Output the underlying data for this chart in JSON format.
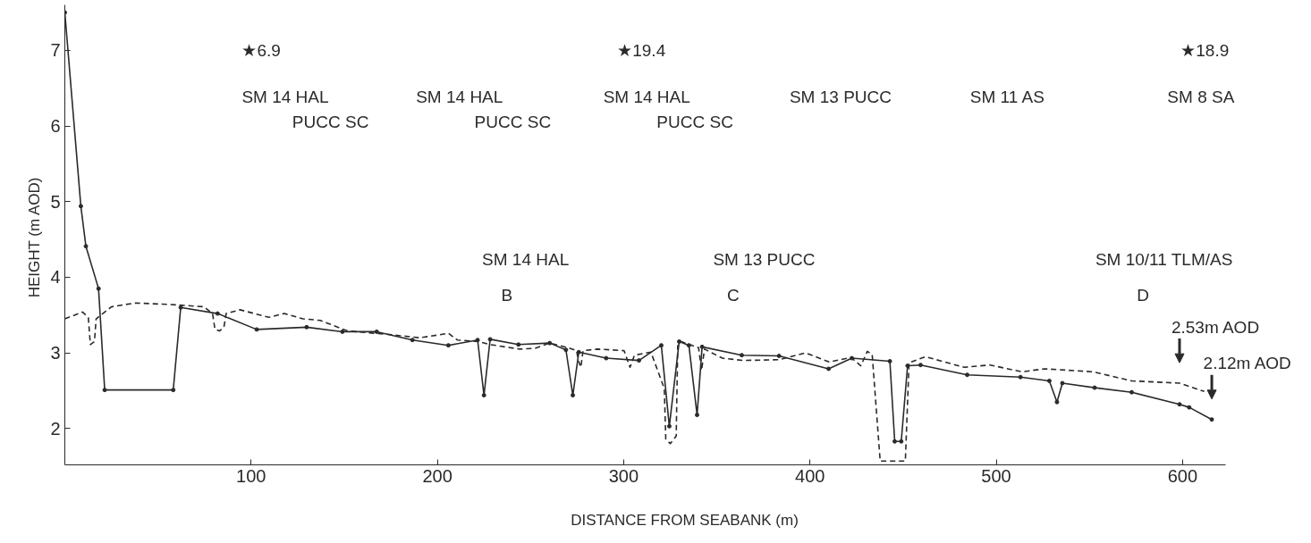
{
  "chart_data": {
    "type": "line",
    "xlabel": "DISTANCE FROM SEABANK (m)",
    "ylabel": "HEIGHT  (m AOD)",
    "xlim": [
      0,
      623
    ],
    "ylim": [
      1.52,
      7.6
    ],
    "xticks": [
      100,
      200,
      300,
      400,
      500,
      600
    ],
    "yticks": [
      2,
      3,
      4,
      5,
      6,
      7
    ],
    "grid": false,
    "series": [
      {
        "color": "#2a2a2a",
        "line_style": "solid",
        "marker": "circle",
        "x": [
          0,
          8.6,
          11.3,
          18.1,
          21.4,
          58.2,
          62.2,
          82,
          103,
          129.8,
          149,
          167.4,
          186.6,
          205.9,
          221.6,
          225,
          228.3,
          243.5,
          260.3,
          269,
          272.7,
          275.9,
          290.6,
          308.2,
          320.2,
          324.5,
          329.8,
          335,
          339.4,
          342.1,
          363.4,
          383.4,
          410,
          422.5,
          442.9,
          445.5,
          449,
          452.4,
          459.4,
          484.4,
          513,
          528.5,
          532.6,
          535.5,
          552.8,
          572.7,
          598.4,
          603.6,
          615.7
        ],
        "values": [
          7.5,
          4.94,
          4.41,
          3.85,
          2.51,
          2.51,
          3.6,
          3.52,
          3.31,
          3.34,
          3.28,
          3.28,
          3.17,
          3.1,
          3.17,
          2.44,
          3.18,
          3.11,
          3.13,
          3.04,
          2.44,
          3.01,
          2.93,
          2.9,
          3.1,
          2.03,
          3.15,
          3.1,
          2.18,
          3.08,
          2.97,
          2.96,
          2.79,
          2.93,
          2.89,
          1.83,
          1.83,
          2.83,
          2.84,
          2.71,
          2.68,
          2.63,
          2.35,
          2.6,
          2.54,
          2.48,
          2.32,
          2.28,
          2.12
        ]
      },
      {
        "color": "#2a2a2a",
        "line_style": "dashed",
        "marker": "none",
        "x": [
          0,
          9.5,
          12.6,
          13.7,
          15.9,
          16.8,
          25.1,
          37.9,
          56.3,
          74.7,
          79.3,
          80.6,
          83,
          85.4,
          86.6,
          94,
          109.6,
          117.8,
          127.9,
          137.1,
          151.8,
          175.5,
          190.4,
          201.4,
          205.9,
          210.7,
          221.9,
          228.3,
          244.3,
          252.3,
          260.3,
          269.9,
          274.7,
          275.8,
          277,
          278.2,
          285.9,
          300.2,
          303.4,
          305.8,
          314.6,
          321.8,
          322.6,
          325,
          328.2,
          329,
          330.6,
          340.2,
          341.8,
          343.4,
          353,
          364.2,
          383.4,
          397.7,
          410.3,
          422,
          427.3,
          430.8,
          433.4,
          437.7,
          451.2,
          453.2,
          461.9,
          482.7,
          496.6,
          513.9,
          526,
          552,
          572.7,
          598.4,
          611.7
        ],
        "values": [
          3.45,
          3.54,
          3.47,
          3.11,
          3.15,
          3.45,
          3.61,
          3.66,
          3.64,
          3.61,
          3.52,
          3.31,
          3.29,
          3.34,
          3.52,
          3.57,
          3.47,
          3.52,
          3.45,
          3.43,
          3.29,
          3.24,
          3.2,
          3.24,
          3.26,
          3.17,
          3.15,
          3.11,
          3.05,
          3.06,
          3.13,
          3.07,
          3.03,
          2.89,
          2.81,
          3.03,
          3.05,
          3.03,
          2.81,
          2.97,
          3.01,
          2.53,
          1.86,
          1.8,
          1.9,
          3.09,
          3.15,
          3.07,
          2.77,
          3.05,
          2.93,
          2.9,
          2.91,
          3,
          2.88,
          2.94,
          2.83,
          3.02,
          2.98,
          1.57,
          1.57,
          2.87,
          2.95,
          2.81,
          2.84,
          2.75,
          2.79,
          2.75,
          2.63,
          2.6,
          2.49
        ]
      }
    ],
    "annotations": [
      "★6.9",
      "★19.4",
      "★18.9",
      "SM 14 HAL",
      "PUCC SC",
      "SM 14 HAL",
      "PUCC SC",
      "SM 14 HAL",
      "PUCC SC",
      "SM 13  PUCC",
      "SM 11 AS",
      "SM 8  SA",
      "SM 14 HAL",
      "B",
      "SM 13 PUCC",
      "C",
      "SM 10/11  TLM/AS",
      "D",
      "2.53m AOD",
      "2.12m AOD"
    ]
  }
}
